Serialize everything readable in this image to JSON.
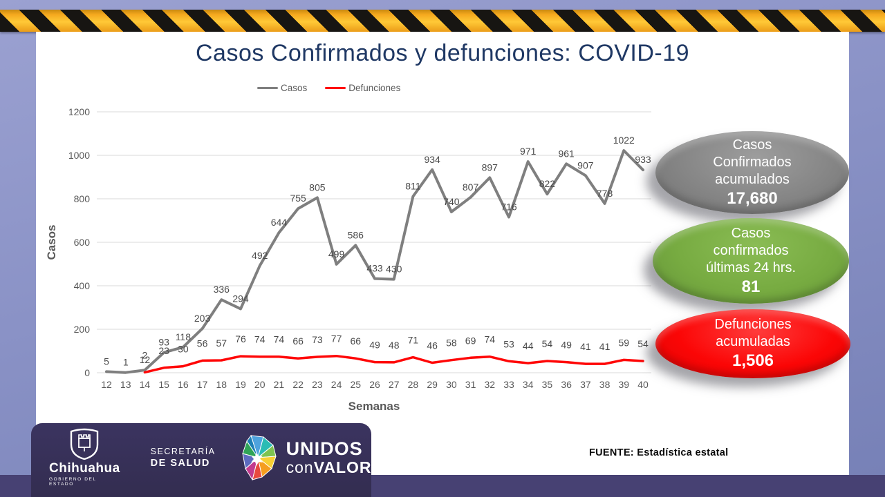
{
  "title": "Casos Confirmados y defunciones: COVID-19",
  "chart_data": {
    "type": "line",
    "x": [
      12,
      13,
      14,
      15,
      16,
      17,
      18,
      19,
      20,
      21,
      22,
      23,
      24,
      25,
      26,
      27,
      28,
      29,
      30,
      31,
      32,
      33,
      34,
      35,
      36,
      37,
      38,
      39,
      40
    ],
    "series": [
      {
        "name": "Casos",
        "color": "#7f7f7f",
        "values": [
          5,
          1,
          12,
          93,
          118,
          203,
          336,
          294,
          492,
          644,
          755,
          805,
          499,
          586,
          433,
          430,
          811,
          934,
          740,
          807,
          897,
          716,
          971,
          822,
          961,
          907,
          778,
          1022,
          933
        ]
      },
      {
        "name": "Defunciones",
        "color": "#ff0606",
        "values": [
          null,
          null,
          2,
          23,
          30,
          56,
          57,
          76,
          74,
          74,
          66,
          73,
          77,
          66,
          49,
          48,
          71,
          46,
          58,
          69,
          74,
          53,
          44,
          54,
          49,
          41,
          41,
          59,
          54
        ]
      }
    ],
    "xlabel": "Semanas",
    "ylabel": "Casos",
    "ylim": [
      0,
      1200
    ],
    "ytick_step": 200,
    "grid": true,
    "legend_position": "top",
    "gridline_color": "#d9d9d9",
    "axis_text_color": "#595959",
    "label_text_color": "#4a4a4a"
  },
  "badges": [
    {
      "lines": [
        "Casos",
        "Confirmados",
        "acumulados"
      ],
      "value": "17,680",
      "color": "#808080"
    },
    {
      "lines": [
        "Casos",
        "confirmados",
        "últimas 24 hrs."
      ],
      "value": "81",
      "color": "#77ab41"
    },
    {
      "lines": [
        "Defunciones",
        "acumuladas"
      ],
      "value": "1,506",
      "color": "#fb0606"
    }
  ],
  "footer": {
    "state_name": "Chihuahua",
    "state_sub": "GOBIERNO DEL ESTADO",
    "secretaria_line1": "SECRETARÍA",
    "secretaria_line2": "DE SALUD",
    "unidos_line1": "UNIDOS",
    "unidos_con": "con",
    "unidos_valor": "VALOR",
    "source": "FUENTE: Estadística estatal"
  }
}
